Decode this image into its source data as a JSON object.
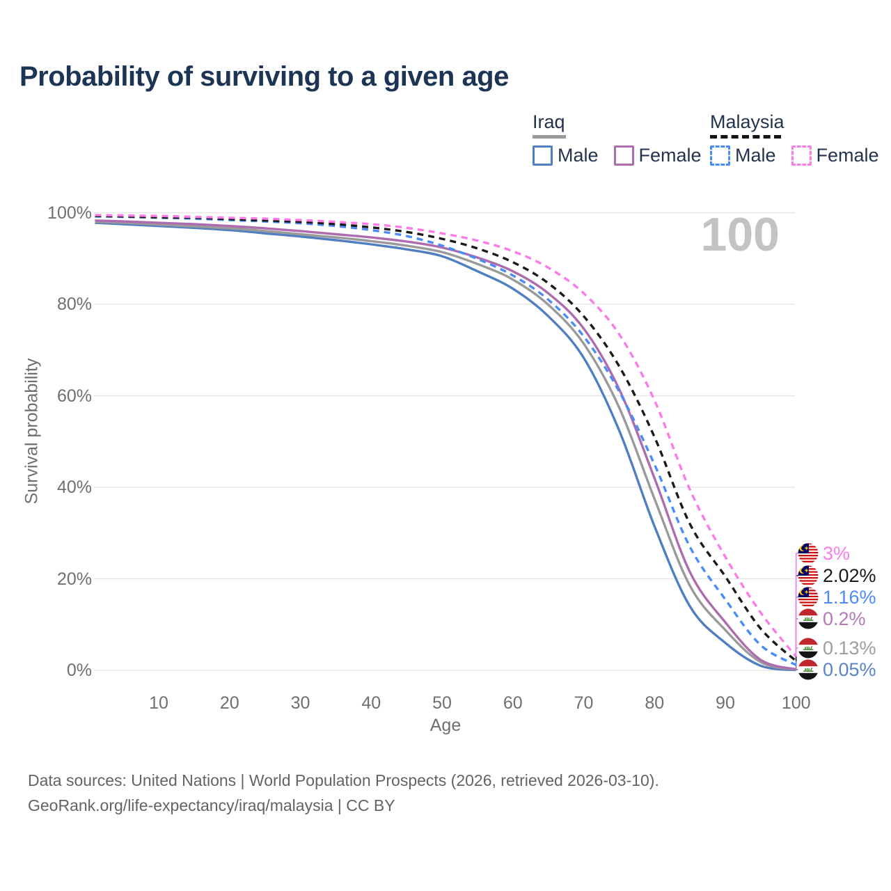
{
  "header": {
    "title": "Probability of surviving to a given age"
  },
  "legend": {
    "groups": [
      {
        "label": "Iraq",
        "underline_style": "solid",
        "underline_color": "#9a9a9a",
        "items": [
          {
            "label": "Male",
            "color": "#4f7ec1",
            "dash": false
          },
          {
            "label": "Female",
            "color": "#ae6cae",
            "dash": false
          }
        ]
      },
      {
        "label": "Malaysia",
        "underline_style": "dashed",
        "underline_color": "#141414",
        "items": [
          {
            "label": "Male",
            "color": "#4a8cf7",
            "dash": true
          },
          {
            "label": "Female",
            "color": "#fb7ce8",
            "dash": true
          }
        ]
      }
    ]
  },
  "watermark": "100",
  "chart_data": {
    "type": "line",
    "title": "Probability of surviving to a given age",
    "xlabel": "Age",
    "ylabel": "Survival probability",
    "xlim": [
      1,
      100
    ],
    "ylim": [
      0,
      100
    ],
    "grid": "horizontal",
    "legend_position": "top-right",
    "x_ticks": [
      10,
      20,
      30,
      40,
      50,
      60,
      70,
      80,
      90,
      100
    ],
    "y_ticks": [
      {
        "v": 100,
        "label": "100%"
      },
      {
        "v": 80,
        "label": "80%"
      },
      {
        "v": 60,
        "label": "60%"
      },
      {
        "v": 40,
        "label": "40%"
      },
      {
        "v": 20,
        "label": "20%"
      },
      {
        "v": 0,
        "label": "0%"
      }
    ],
    "ages": [
      1,
      5,
      10,
      15,
      20,
      25,
      30,
      35,
      40,
      45,
      50,
      55,
      60,
      65,
      70,
      75,
      80,
      85,
      90,
      95,
      100
    ],
    "series": [
      {
        "name": "Iraq Male",
        "country": "Iraq",
        "sex": "Male",
        "style": "solid",
        "color": "#4f7ec1",
        "end_label": "0.05%",
        "end_label_index": 5,
        "values": [
          97.8,
          97.5,
          97.1,
          96.7,
          96.2,
          95.5,
          94.8,
          94.0,
          93.1,
          92.0,
          90.5,
          87.2,
          83.4,
          77.4,
          68.3,
          52.5,
          31.5,
          14.0,
          6.0,
          1.0,
          0.05
        ]
      },
      {
        "name": "Iraq Both sexes",
        "country": "Iraq",
        "sex": "Both",
        "style": "solid",
        "color": "#9a9a9a",
        "end_label": "0.13%",
        "end_label_index": 4,
        "values": [
          98.0,
          97.8,
          97.4,
          97.0,
          96.6,
          96.0,
          95.3,
          94.6,
          93.8,
          92.8,
          91.4,
          88.8,
          85.4,
          79.9,
          71.4,
          57.5,
          37.5,
          18.5,
          8.8,
          1.8,
          0.13
        ]
      },
      {
        "name": "Iraq Female",
        "country": "Iraq",
        "sex": "Female",
        "style": "solid",
        "color": "#ae6cae",
        "end_label": "0.2%",
        "end_label_index": 3,
        "values": [
          98.3,
          98.1,
          97.8,
          97.5,
          97.1,
          96.6,
          96.0,
          95.3,
          94.6,
          93.7,
          92.4,
          90.2,
          87.2,
          82.4,
          74.7,
          61.5,
          42.0,
          21.5,
          10.5,
          2.3,
          0.2
        ]
      },
      {
        "name": "Malaysia Male",
        "country": "Malaysia",
        "sex": "Male",
        "style": "dashed",
        "color": "#4a8cf7",
        "end_label": "1.16%",
        "end_label_index": 2,
        "values": [
          99.2,
          99.1,
          98.9,
          98.7,
          98.4,
          98.1,
          97.7,
          97.1,
          96.2,
          94.9,
          92.8,
          89.9,
          86.3,
          81.0,
          73.0,
          61.0,
          45.0,
          27.0,
          15.5,
          5.5,
          1.16
        ]
      },
      {
        "name": "Malaysia Both sexes",
        "country": "Malaysia",
        "sex": "Both",
        "style": "dashed",
        "color": "#1a1a1a",
        "end_label": "2.02%",
        "end_label_index": 1,
        "values": [
          99.3,
          99.2,
          99.0,
          98.9,
          98.6,
          98.3,
          98.0,
          97.5,
          96.8,
          95.8,
          94.3,
          92.2,
          89.2,
          84.6,
          77.4,
          66.5,
          51.0,
          32.0,
          20.5,
          9.1,
          2.02
        ]
      },
      {
        "name": "Malaysia Female",
        "country": "Malaysia",
        "sex": "Female",
        "style": "dashed",
        "color": "#fb7ce8",
        "end_label": "3%",
        "end_label_index": 0,
        "values": [
          99.5,
          99.4,
          99.3,
          99.1,
          98.9,
          98.7,
          98.4,
          98.0,
          97.5,
          96.7,
          95.5,
          93.9,
          91.6,
          88.0,
          82.4,
          73.5,
          59.0,
          39.5,
          24.8,
          12.6,
          3.0
        ]
      }
    ]
  },
  "end_labels": [
    {
      "country": "Malaysia",
      "value": "3%",
      "color": "#fb7ce8"
    },
    {
      "country": "Malaysia",
      "value": "2.02%",
      "color": "#1a1a1a"
    },
    {
      "country": "Malaysia",
      "value": "1.16%",
      "color": "#4a8cf7"
    },
    {
      "country": "Iraq",
      "value": "0.2%",
      "color": "#b579b5"
    },
    {
      "country": "Iraq",
      "value": "0.13%",
      "color": "#9e9e9e"
    },
    {
      "country": "Iraq",
      "value": "0.05%",
      "color": "#5b84c4"
    }
  ],
  "footer": {
    "line1": "Data sources: United Nations | World Population Prospects (2026, retrieved 2026-03-10).",
    "line2": "GeoRank.org/life-expectancy/iraq/malaysia | CC BY"
  }
}
